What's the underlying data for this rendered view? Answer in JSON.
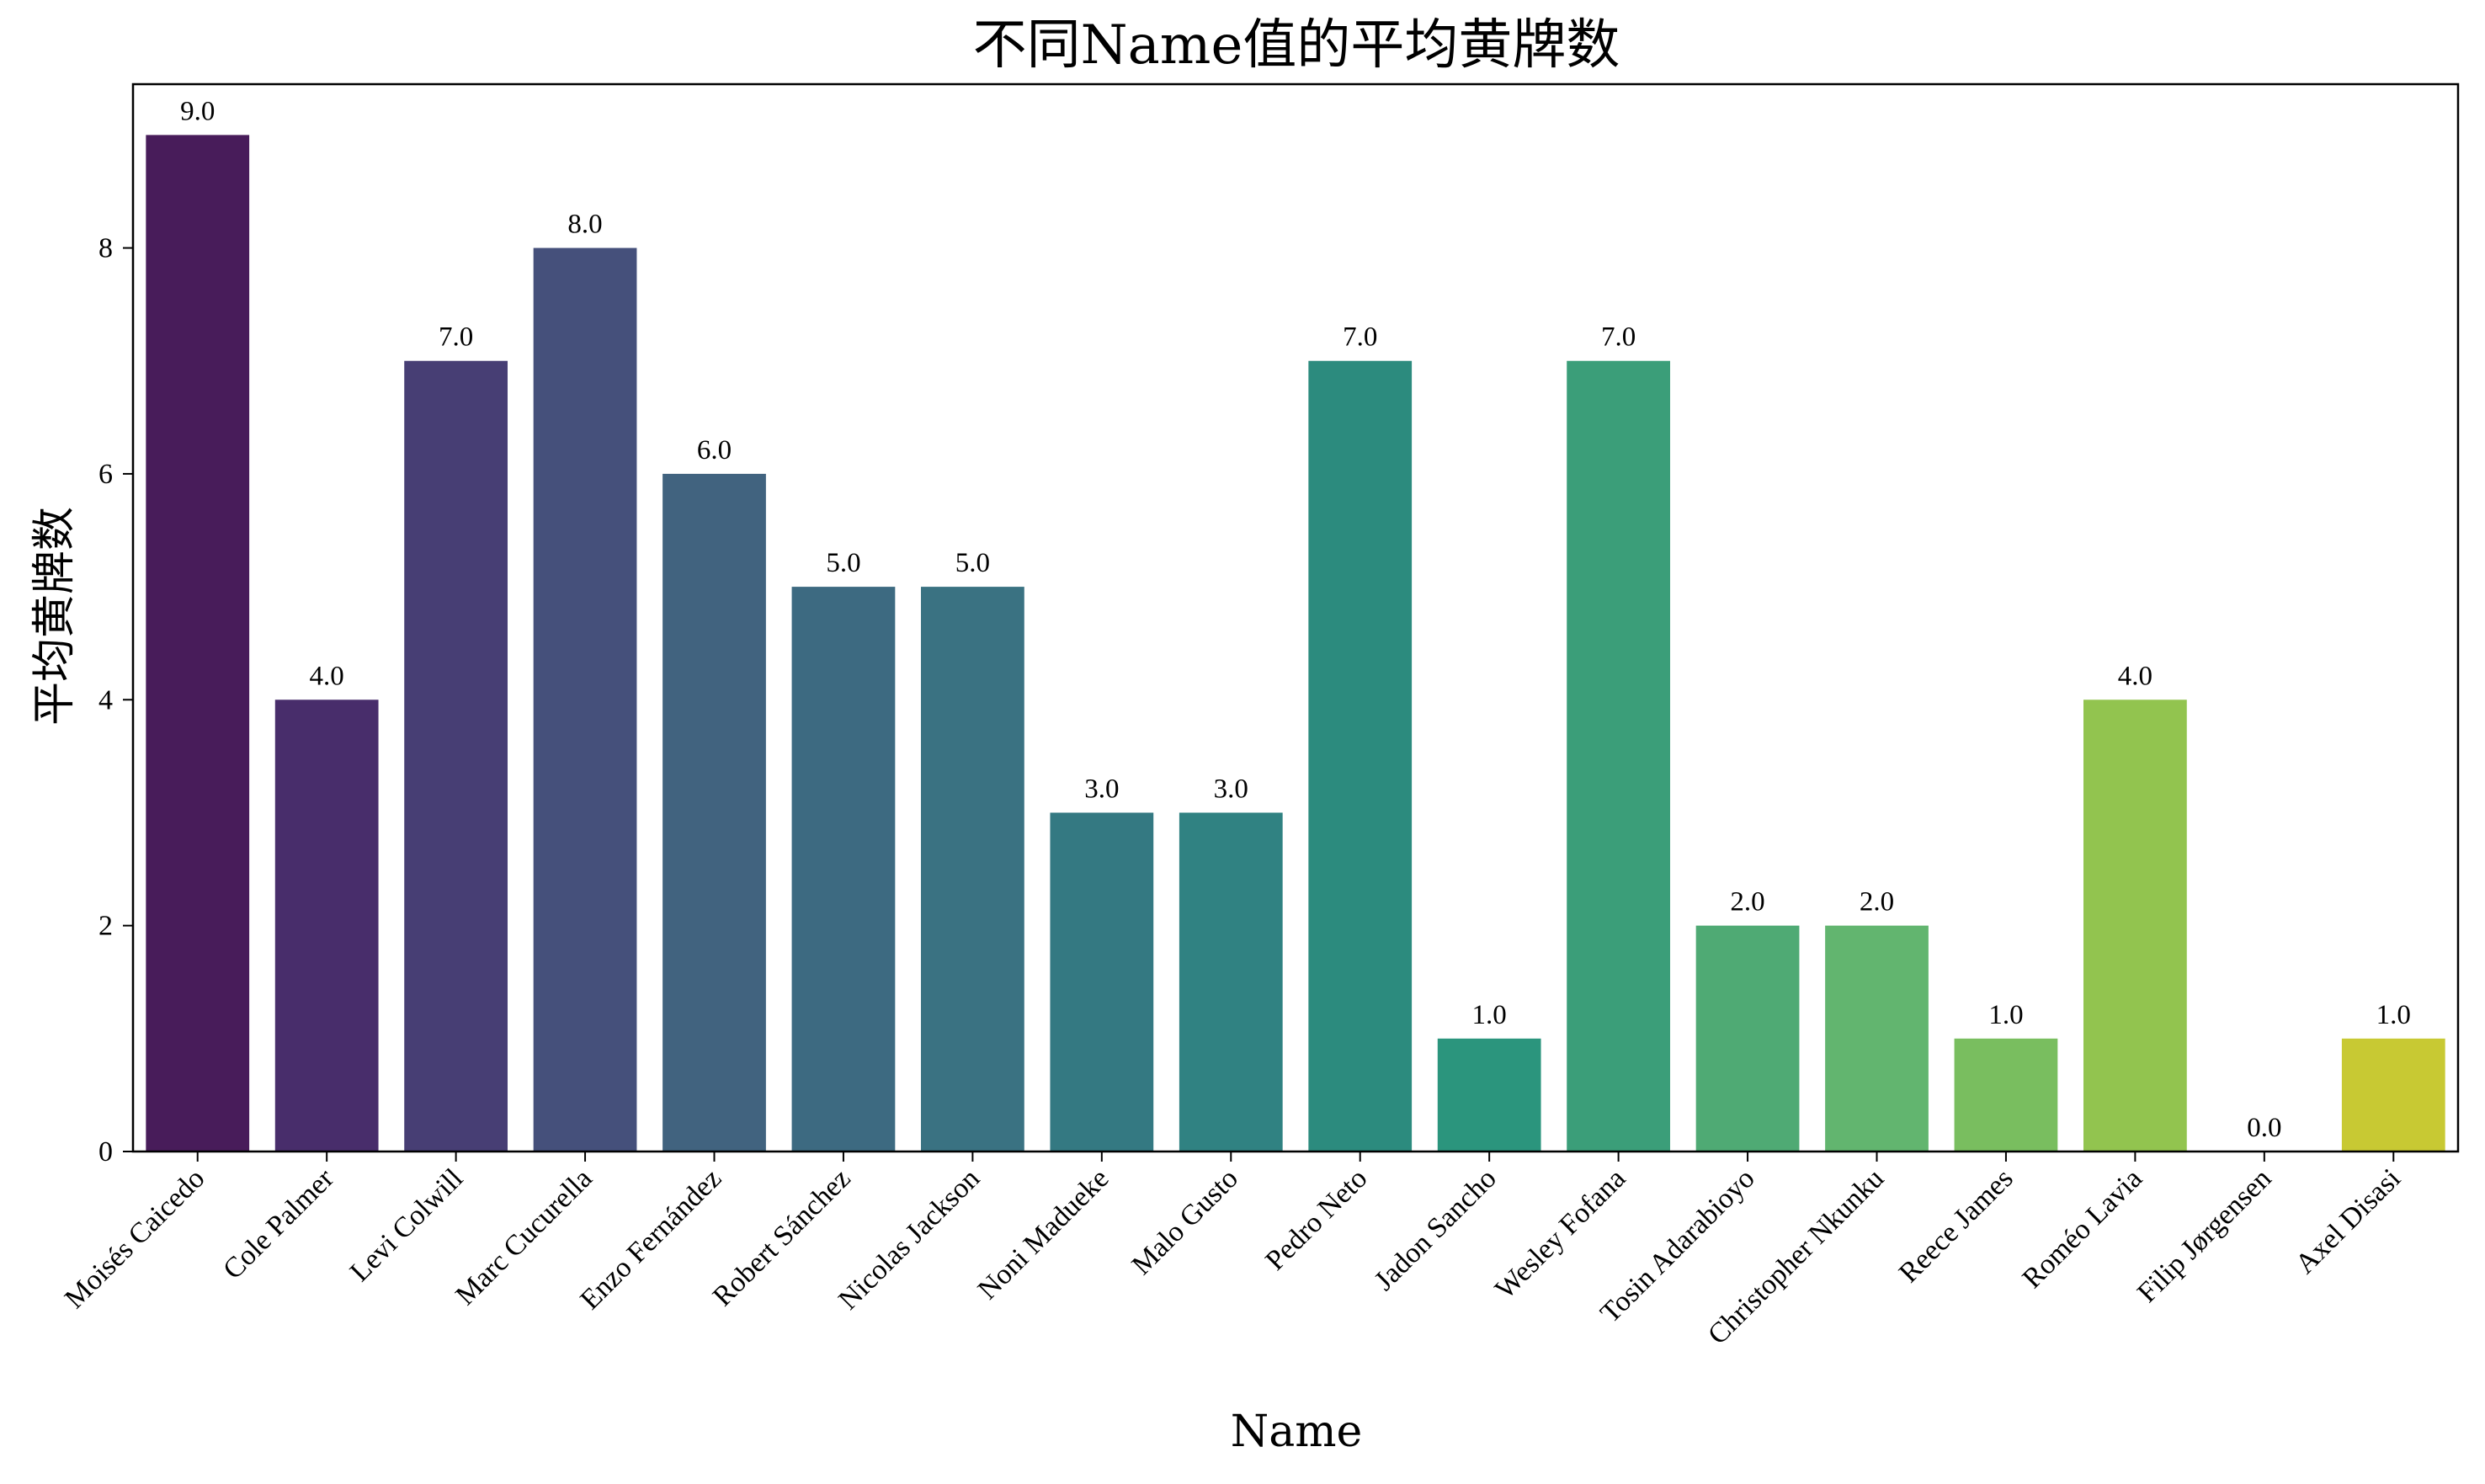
{
  "chart_data": {
    "type": "bar",
    "title": "不同Name值的平均黄牌数",
    "xlabel": "Name",
    "ylabel": "平均黄牌数",
    "categories": [
      "Moisés Caicedo",
      "Cole Palmer",
      "Levi Colwill",
      "Marc Cucurella",
      "Enzo Fernández",
      "Robert Sánchez",
      "Nicolas Jackson",
      "Noni Madueke",
      "Malo Gusto",
      "Pedro Neto",
      "Jadon Sancho",
      "Wesley Fofana",
      "Tosin Adarabioyo",
      "Christopher Nkunku",
      "Reece James",
      "Roméo Lavia",
      "Filip Jørgensen",
      "Axel Disasi"
    ],
    "values": [
      9.0,
      4.0,
      7.0,
      8.0,
      6.0,
      5.0,
      5.0,
      3.0,
      3.0,
      7.0,
      1.0,
      7.0,
      2.0,
      2.0,
      1.0,
      4.0,
      0.0,
      1.0
    ],
    "data_labels": [
      "9.0",
      "4.0",
      "7.0",
      "8.0",
      "6.0",
      "5.0",
      "5.0",
      "3.0",
      "3.0",
      "7.0",
      "1.0",
      "7.0",
      "2.0",
      "2.0",
      "1.0",
      "4.0",
      "0.0",
      "1.0"
    ],
    "yticks": [
      0,
      2,
      4,
      6,
      8
    ],
    "ylim": [
      0,
      9.45
    ],
    "grid": false,
    "legend": "none",
    "colors": [
      "#481c5a",
      "#482d6b",
      "#473e74",
      "#45507b",
      "#41637f",
      "#3d6a81",
      "#3a7282",
      "#347982",
      "#308282",
      "#2c8b7e",
      "#2b957d",
      "#3b9e79",
      "#4faa74",
      "#62b56f",
      "#79be5f",
      "#92c44f",
      "#b0c943",
      "#c8c933"
    ]
  }
}
